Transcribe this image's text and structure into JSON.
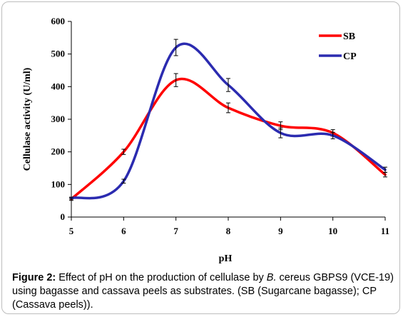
{
  "chart_data": {
    "type": "line",
    "title": "",
    "xlabel": "pH",
    "ylabel": "Cellulase activity (U/ml)",
    "x": [
      5,
      6,
      7,
      8,
      9,
      10,
      11
    ],
    "xlim": [
      5,
      11
    ],
    "ylim": [
      0,
      600
    ],
    "y_ticks": [
      0,
      100,
      200,
      300,
      400,
      500,
      600
    ],
    "x_ticks": [
      5,
      6,
      7,
      8,
      9,
      10,
      11
    ],
    "grid": false,
    "legend_position": "top-right",
    "series": [
      {
        "name": "SB",
        "color": "#ff0000",
        "values": [
          55,
          200,
          420,
          335,
          280,
          258,
          130
        ],
        "errors": [
          4,
          8,
          20,
          15,
          12,
          10,
          7
        ]
      },
      {
        "name": "CP",
        "color": "#2b2bb0",
        "values": [
          58,
          110,
          520,
          405,
          258,
          250,
          145
        ],
        "errors": [
          3,
          6,
          25,
          20,
          15,
          10,
          8
        ]
      }
    ]
  },
  "caption": {
    "label": "Figure 2:",
    "text_before": " Effect of pH on the production of cellulase by ",
    "species": "B.",
    "text_after": " cereus GBPS9 (VCE-19) using bagasse and cassava peels as substrates. (SB (Sugarcane bagasse); CP (Cassava peels))."
  }
}
